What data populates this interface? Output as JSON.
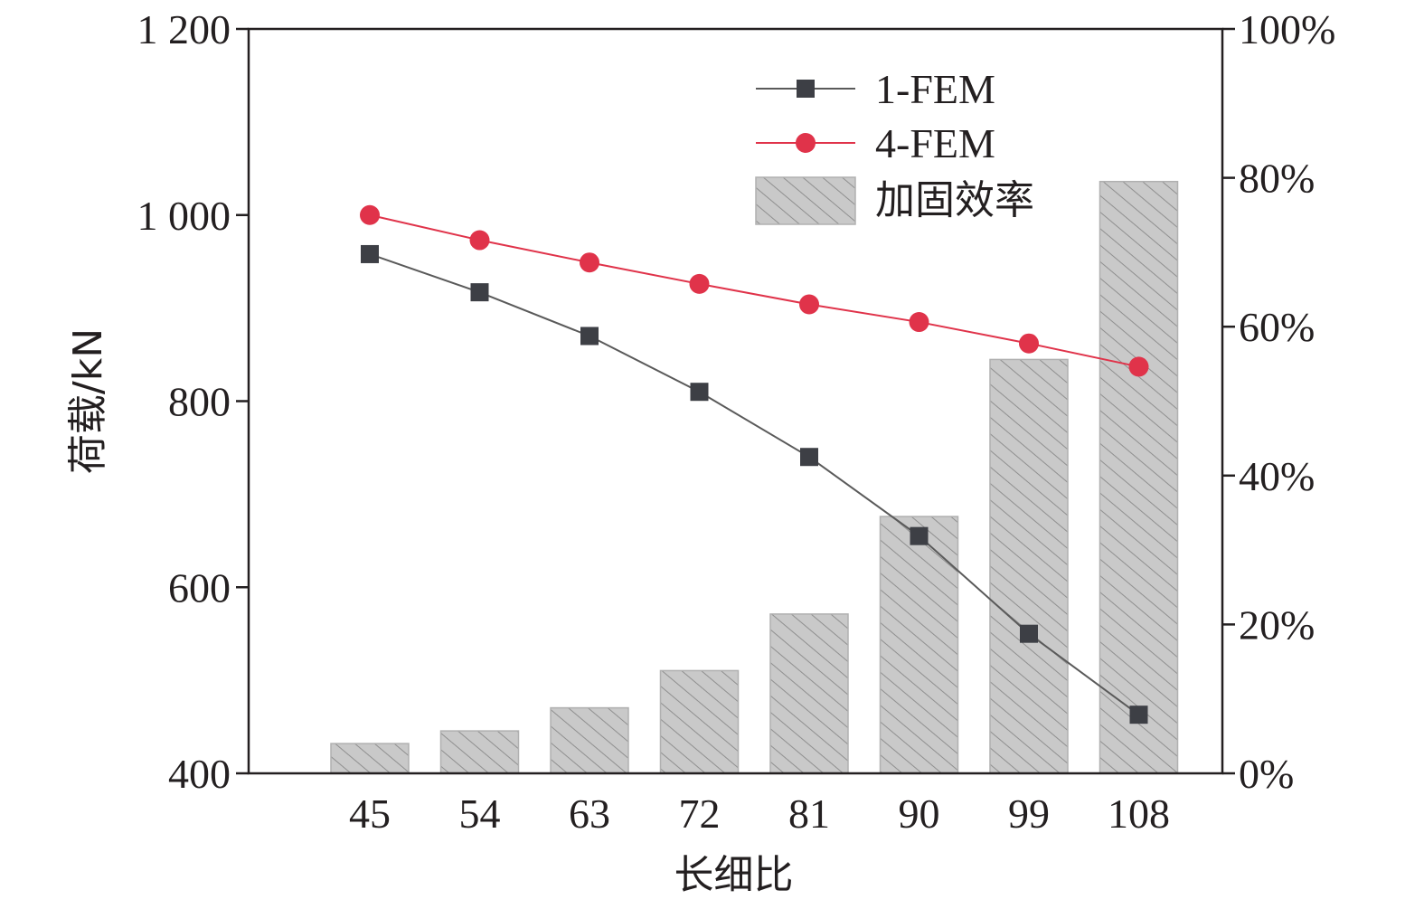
{
  "chart_data": {
    "type": "bar",
    "categories": [
      "45",
      "54",
      "63",
      "72",
      "81",
      "90",
      "99",
      "108"
    ],
    "xlabel": "长细比",
    "ylabel": "荷载/kN",
    "ylim": [
      400,
      1200
    ],
    "yticks": [
      "400",
      "600",
      "800",
      "1 000",
      "1 200"
    ],
    "y2lim": [
      0,
      100
    ],
    "y2ticks": [
      "0%",
      "20%",
      "40%",
      "60%",
      "80%",
      "100%"
    ],
    "grid": false,
    "legend_position": "top-right",
    "series": [
      {
        "name": "1-FEM",
        "type": "line",
        "axis": "left",
        "marker": "square",
        "color": "#5a5a5a",
        "marker_color": "#3d3f45",
        "values": [
          958,
          917,
          870,
          810,
          740,
          655,
          550,
          463
        ]
      },
      {
        "name": "4-FEM",
        "type": "line",
        "axis": "left",
        "marker": "circle",
        "color": "#e0334a",
        "marker_color": "#e0334a",
        "values": [
          1000,
          973,
          949,
          926,
          904,
          885,
          862,
          837
        ]
      },
      {
        "name": "加固效率",
        "type": "bar",
        "axis": "right",
        "pattern": "hatched",
        "color": "#c8c8c8",
        "values": [
          4,
          5.7,
          8.8,
          13.8,
          21.4,
          34.5,
          55.6,
          79.5
        ]
      }
    ]
  }
}
